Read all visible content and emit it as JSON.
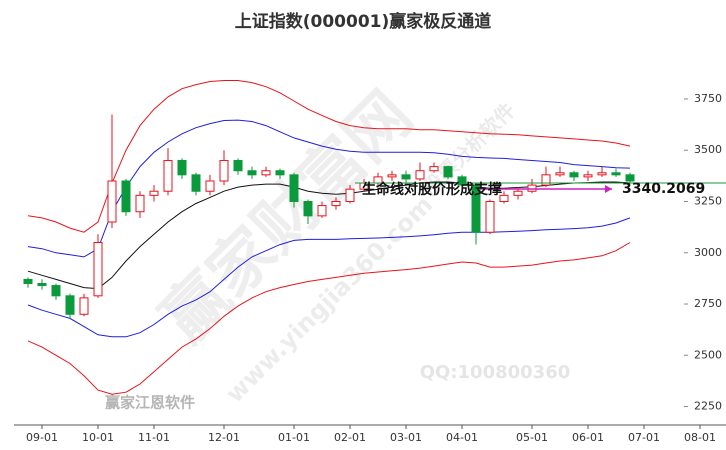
{
  "chart_data": {
    "type": "candlestick",
    "title": "上证指数(000001)赢家极反通道",
    "categories": [
      null,
      "09-01",
      null,
      null,
      null,
      "10-01",
      null,
      null,
      null,
      "11-01",
      null,
      null,
      null,
      null,
      "12-01",
      null,
      null,
      null,
      null,
      "01-01",
      null,
      null,
      null,
      "02-01",
      null,
      null,
      null,
      "03-01",
      null,
      null,
      null,
      "04-01",
      null,
      null,
      null,
      null,
      "05-01",
      null,
      null,
      null,
      "06-01",
      null,
      null,
      null,
      "07-01",
      null,
      null,
      null,
      "08-01",
      null
    ],
    "ohlc": {
      "up_color": "#e8141c",
      "down_color": "#0a9a3c",
      "open": [
        2870,
        2850,
        2840,
        2790,
        2700,
        2790,
        3150,
        3350,
        3200,
        3280,
        3300,
        3450,
        3380,
        3300,
        3350,
        3450,
        3400,
        3380,
        3400,
        3380,
        3250,
        3180,
        3230,
        3250,
        3310,
        3340,
        3370,
        3380,
        3360,
        3400,
        3420,
        3370,
        3330,
        3100,
        3250,
        3280,
        3300,
        3330,
        3380,
        3390,
        3370,
        3380,
        3390,
        3380,
        null,
        null,
        null,
        null,
        null,
        null
      ],
      "high": [
        2880,
        2870,
        2850,
        2800,
        2800,
        3090,
        3674,
        3360,
        3300,
        3330,
        3510,
        3460,
        3390,
        3380,
        3500,
        3460,
        3420,
        3420,
        3410,
        3390,
        3260,
        3250,
        3270,
        3330,
        3360,
        3390,
        3400,
        3400,
        3440,
        3440,
        3425,
        3380,
        3340,
        3260,
        3300,
        3320,
        3360,
        3420,
        3420,
        3400,
        3400,
        3420,
        3410,
        3390,
        null,
        null,
        null,
        null,
        null,
        null
      ],
      "low": [
        2830,
        2820,
        2770,
        2680,
        2690,
        2780,
        3120,
        3180,
        3170,
        3250,
        3280,
        3360,
        3280,
        3280,
        3330,
        3380,
        3360,
        3370,
        3360,
        3220,
        3140,
        3170,
        3210,
        3240,
        3300,
        3330,
        3350,
        3340,
        3350,
        3390,
        3360,
        3320,
        3040,
        3090,
        3240,
        3260,
        3290,
        3320,
        3370,
        3350,
        3350,
        3370,
        3370,
        3340,
        null,
        null,
        null,
        null,
        null,
        null
      ],
      "close": [
        2850,
        2840,
        2790,
        2700,
        2780,
        3050,
        3350,
        3200,
        3280,
        3300,
        3450,
        3380,
        3300,
        3350,
        3450,
        3400,
        3380,
        3400,
        3380,
        3250,
        3180,
        3230,
        3250,
        3310,
        3340,
        3370,
        3380,
        3360,
        3400,
        3420,
        3370,
        3330,
        3100,
        3250,
        3280,
        3300,
        3330,
        3380,
        3390,
        3370,
        3380,
        3390,
        3380,
        3350,
        null,
        null,
        null,
        null,
        null,
        null
      ]
    },
    "series": [
      {
        "color": "#e8141c",
        "values": [
          3180,
          3170,
          3150,
          3120,
          3100,
          3150,
          3340,
          3500,
          3620,
          3700,
          3760,
          3800,
          3820,
          3835,
          3840,
          3840,
          3830,
          3810,
          3780,
          3740,
          3700,
          3670,
          3640,
          3620,
          3610,
          3605,
          3605,
          3605,
          3600,
          3600,
          3595,
          3590,
          3585,
          3580,
          3578,
          3575,
          3570,
          3565,
          3560,
          3555,
          3550,
          3545,
          3535,
          3520,
          null,
          null,
          null,
          null,
          null,
          null
        ]
      },
      {
        "color": "#1f1fe0",
        "values": [
          3030,
          3020,
          3000,
          2990,
          2980,
          3020,
          3200,
          3320,
          3420,
          3490,
          3540,
          3580,
          3610,
          3630,
          3645,
          3647,
          3640,
          3620,
          3590,
          3560,
          3540,
          3520,
          3505,
          3495,
          3490,
          3490,
          3490,
          3490,
          3490,
          3488,
          3480,
          3470,
          3465,
          3462,
          3460,
          3455,
          3450,
          3445,
          3440,
          3430,
          3425,
          3420,
          3415,
          3413,
          null,
          null,
          null,
          null,
          null,
          null
        ]
      },
      {
        "color": "#111111",
        "values": [
          2910,
          2890,
          2870,
          2850,
          2830,
          2825,
          2880,
          2960,
          3030,
          3090,
          3150,
          3200,
          3240,
          3270,
          3300,
          3320,
          3330,
          3335,
          3335,
          3320,
          3300,
          3290,
          3285,
          3290,
          3300,
          3310,
          3320,
          3330,
          3340,
          3345,
          3345,
          3340,
          3320,
          3315,
          3315,
          3318,
          3322,
          3328,
          3335,
          3340,
          3342,
          3345,
          3345,
          3340,
          null,
          null,
          null,
          null,
          null,
          null
        ]
      },
      {
        "color": "#1f1fe0",
        "values": [
          2745,
          2720,
          2700,
          2680,
          2640,
          2600,
          2590,
          2590,
          2610,
          2650,
          2700,
          2740,
          2770,
          2810,
          2870,
          2930,
          2980,
          3010,
          3040,
          3060,
          3065,
          3065,
          3065,
          3068,
          3070,
          3072,
          3075,
          3078,
          3082,
          3088,
          3095,
          3100,
          3100,
          3100,
          3102,
          3105,
          3108,
          3112,
          3115,
          3118,
          3122,
          3130,
          3145,
          3170,
          null,
          null,
          null,
          null,
          null,
          null
        ]
      },
      {
        "color": "#e8141c",
        "values": [
          2570,
          2540,
          2500,
          2460,
          2400,
          2330,
          2310,
          2320,
          2360,
          2420,
          2480,
          2540,
          2580,
          2630,
          2690,
          2740,
          2780,
          2810,
          2830,
          2845,
          2860,
          2870,
          2880,
          2890,
          2900,
          2906,
          2912,
          2918,
          2925,
          2935,
          2945,
          2955,
          2950,
          2930,
          2930,
          2935,
          2940,
          2950,
          2960,
          2965,
          2975,
          2985,
          3010,
          3050,
          null,
          null,
          null,
          null,
          null,
          null
        ]
      }
    ],
    "support": {
      "text": "生命线对股价形成支撑",
      "value": 3340.2069,
      "color": "#1a9a3a",
      "arrow_color": "#d020c0"
    },
    "ylim": [
      2160,
      3940
    ],
    "yticks": [
      2250,
      2500,
      2750,
      3000,
      3250,
      3500,
      3750
    ],
    "grid": false,
    "watermarks": [
      "赢家财富网",
      "赢家江恩软件",
      "QQ:100800360",
      "www.yingjia360.com",
      "股票分析软件"
    ]
  }
}
